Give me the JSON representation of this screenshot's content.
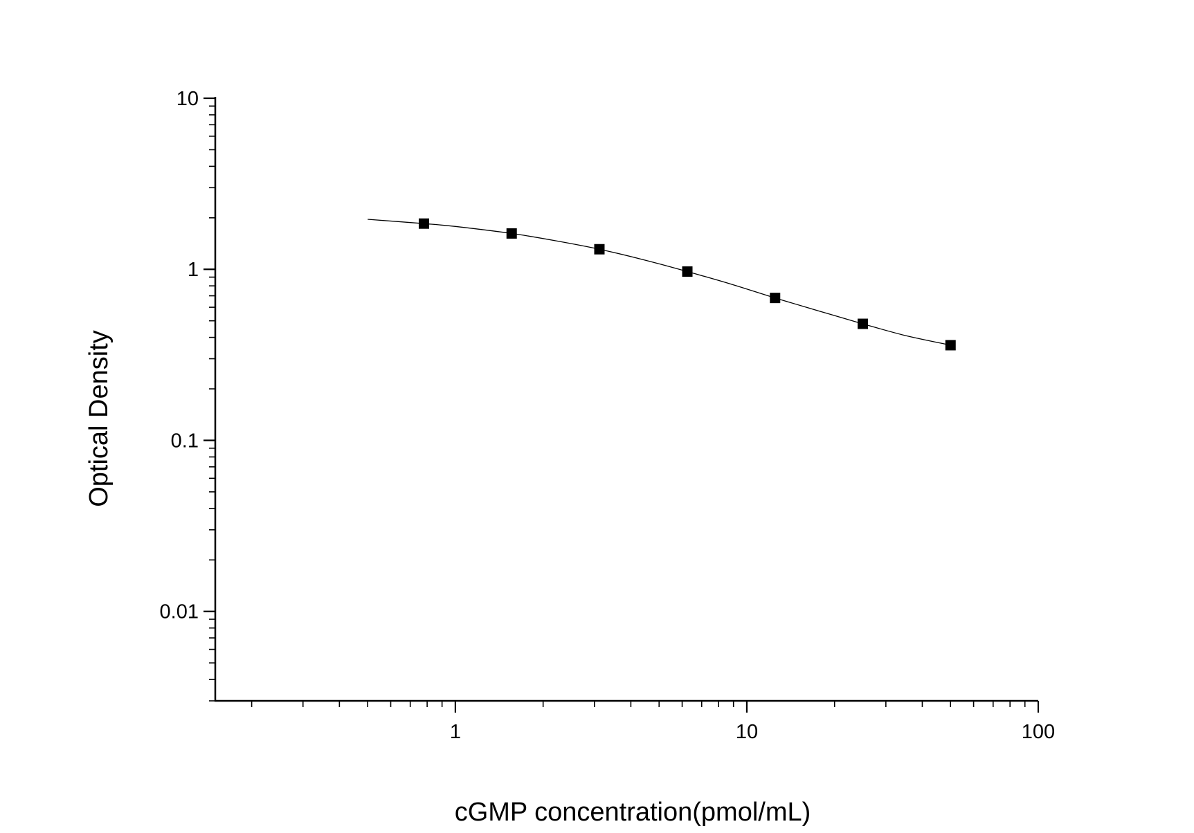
{
  "chart_data": {
    "type": "scatter",
    "xlabel": "cGMP concentration(pmol/mL)",
    "ylabel": "Optical Density",
    "x_scale": "log",
    "y_scale": "log",
    "xlim": [
      0.15,
      100
    ],
    "ylim": [
      0.003,
      10
    ],
    "x_ticks": [
      {
        "value": 1,
        "label": "1"
      },
      {
        "value": 10,
        "label": "10"
      },
      {
        "value": 100,
        "label": "100"
      }
    ],
    "y_ticks": [
      {
        "value": 10,
        "label": "10"
      },
      {
        "value": 1,
        "label": "1"
      },
      {
        "value": 0.1,
        "label": "0.1"
      },
      {
        "value": 0.01,
        "label": "0.01"
      }
    ],
    "grid": false,
    "series": [
      {
        "marker": "square",
        "color": "#000000",
        "points": [
          {
            "x": 0.78,
            "y": 1.85
          },
          {
            "x": 1.56,
            "y": 1.62
          },
          {
            "x": 3.12,
            "y": 1.31
          },
          {
            "x": 6.25,
            "y": 0.97
          },
          {
            "x": 12.5,
            "y": 0.68
          },
          {
            "x": 25,
            "y": 0.48
          },
          {
            "x": 50,
            "y": 0.36
          }
        ]
      }
    ],
    "fit_curve": {
      "color": "#000000",
      "x_range": [
        0.5,
        50
      ],
      "points": [
        {
          "x": 0.5,
          "y": 1.96
        },
        {
          "x": 0.78,
          "y": 1.85
        },
        {
          "x": 1.0,
          "y": 1.78
        },
        {
          "x": 1.56,
          "y": 1.62
        },
        {
          "x": 2.2,
          "y": 1.47
        },
        {
          "x": 3.12,
          "y": 1.31
        },
        {
          "x": 4.4,
          "y": 1.14
        },
        {
          "x": 6.25,
          "y": 0.97
        },
        {
          "x": 8.8,
          "y": 0.82
        },
        {
          "x": 12.5,
          "y": 0.68
        },
        {
          "x": 17.7,
          "y": 0.57
        },
        {
          "x": 25,
          "y": 0.48
        },
        {
          "x": 35,
          "y": 0.41
        },
        {
          "x": 50,
          "y": 0.36
        }
      ]
    }
  }
}
